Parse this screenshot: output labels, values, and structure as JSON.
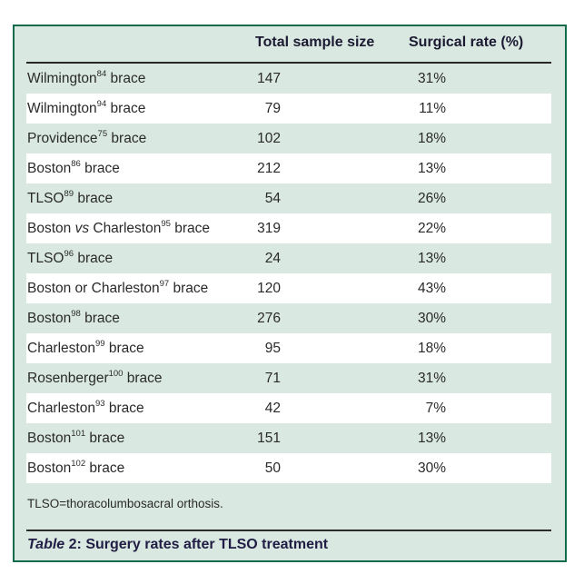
{
  "table": {
    "header": {
      "col_sample": "Total sample size",
      "col_rate": "Surgical rate (%)"
    },
    "rows": [
      {
        "pre": "Wilmington",
        "it": "",
        "mid": "",
        "sup": "84",
        "post": " brace",
        "sample": "147",
        "rate": "31%"
      },
      {
        "pre": "Wilmington",
        "it": "",
        "mid": "",
        "sup": "94",
        "post": " brace",
        "sample": "79",
        "rate": "11%"
      },
      {
        "pre": "Providence",
        "it": "",
        "mid": "",
        "sup": "75",
        "post": " brace",
        "sample": "102",
        "rate": "18%"
      },
      {
        "pre": "Boston",
        "it": "",
        "mid": "",
        "sup": "86",
        "post": " brace",
        "sample": "212",
        "rate": "13%"
      },
      {
        "pre": "TLSO",
        "it": "",
        "mid": "",
        "sup": "89",
        "post": " brace",
        "sample": "54",
        "rate": "26%"
      },
      {
        "pre": "Boston ",
        "it": "vs",
        "mid": " Charleston",
        "sup": "95",
        "post": " brace",
        "sample": "319",
        "rate": "22%"
      },
      {
        "pre": "TLSO",
        "it": "",
        "mid": "",
        "sup": "96",
        "post": " brace",
        "sample": "24",
        "rate": "13%"
      },
      {
        "pre": "Boston or Charleston",
        "it": "",
        "mid": "",
        "sup": "97",
        "post": " brace",
        "sample": "120",
        "rate": "43%"
      },
      {
        "pre": "Boston",
        "it": "",
        "mid": "",
        "sup": "98",
        "post": " brace",
        "sample": "276",
        "rate": "30%"
      },
      {
        "pre": "Charleston",
        "it": "",
        "mid": "",
        "sup": "99",
        "post": " brace",
        "sample": "95",
        "rate": "18%"
      },
      {
        "pre": "Rosenberger",
        "it": "",
        "mid": "",
        "sup": "100",
        "post": " brace",
        "sample": "71",
        "rate": "31%"
      },
      {
        "pre": "Charleston",
        "it": "",
        "mid": "",
        "sup": "93",
        "post": " brace",
        "sample": "42",
        "rate": "7%"
      },
      {
        "pre": "Boston",
        "it": "",
        "mid": "",
        "sup": "101",
        "post": " brace",
        "sample": "151",
        "rate": "13%"
      },
      {
        "pre": "Boston",
        "it": "",
        "mid": "",
        "sup": "102",
        "post": " brace",
        "sample": "50",
        "rate": "30%"
      }
    ],
    "footnote": "TLSO=thoracolumbosacral orthosis.",
    "caption": {
      "label_italic": "Table",
      "label_number": " 2: ",
      "text": "Surgery rates after TLSO treatment"
    }
  },
  "colors": {
    "table_background": "#d9e8e0",
    "border_green": "#0f6b49",
    "stripe_white": "#ffffff",
    "rule_dark": "#262626",
    "text_body": "#2a2a2a",
    "text_heading": "#1c1a33",
    "text_caption": "#211d44"
  }
}
